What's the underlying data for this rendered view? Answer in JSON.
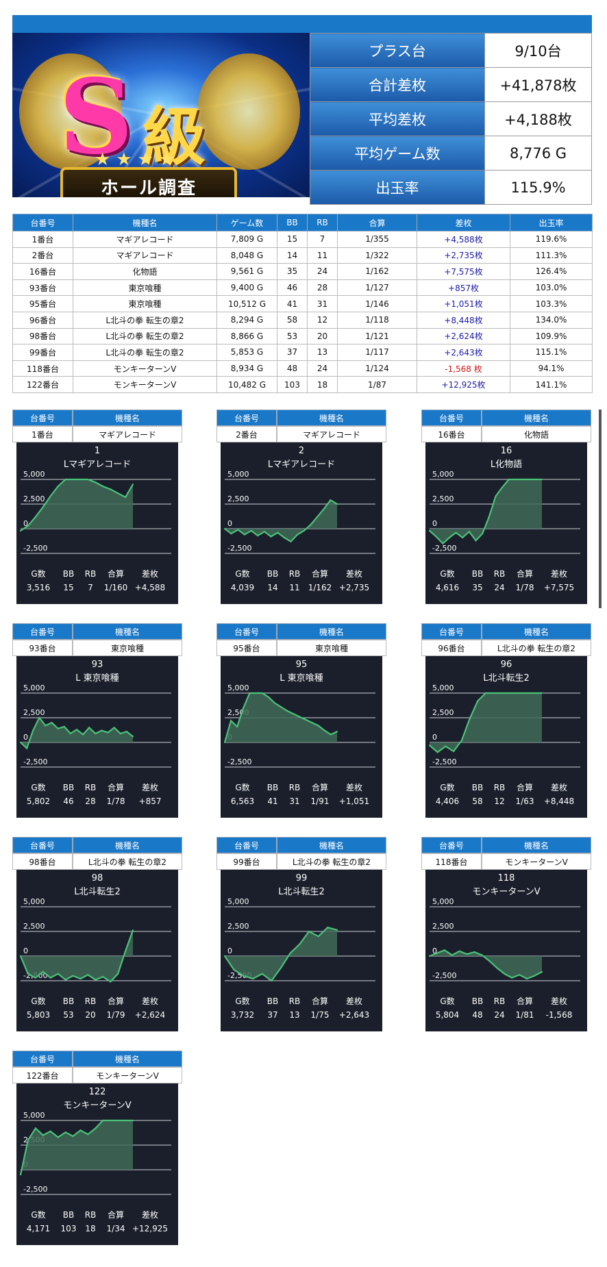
{
  "summary": [
    {
      "label": "プラス台",
      "value": "9/10台"
    },
    {
      "label": "合計差枚",
      "value": "+41,878枚"
    },
    {
      "label": "平均差枚",
      "value": "+4,188枚"
    },
    {
      "label": "平均ゲーム数",
      "value": "8,776 G"
    },
    {
      "label": "出玉率",
      "value": "115.9%"
    }
  ],
  "banner": {
    "big": "S",
    "kanji": "級",
    "ribbon": "ホール調査"
  },
  "table": {
    "headers": [
      "台番号",
      "機種名",
      "ゲーム数",
      "BB",
      "RB",
      "合算",
      "差枚",
      "出玉率"
    ],
    "rows": [
      [
        "1番台",
        "マギアレコード",
        "7,809 G",
        "15",
        "7",
        "1/355",
        "+4,588枚",
        "119.6%"
      ],
      [
        "2番台",
        "マギアレコード",
        "8,048 G",
        "14",
        "11",
        "1/322",
        "+2,735枚",
        "111.3%"
      ],
      [
        "16番台",
        "化物語",
        "9,561 G",
        "35",
        "24",
        "1/162",
        "+7,575枚",
        "126.4%"
      ],
      [
        "93番台",
        "東京喰種",
        "9,400 G",
        "46",
        "28",
        "1/127",
        "+857枚",
        "103.0%"
      ],
      [
        "95番台",
        "東京喰種",
        "10,512 G",
        "41",
        "31",
        "1/146",
        "+1,051枚",
        "103.3%"
      ],
      [
        "96番台",
        "L北斗の拳 転生の章2",
        "8,294 G",
        "58",
        "12",
        "1/118",
        "+8,448枚",
        "134.0%"
      ],
      [
        "98番台",
        "L北斗の拳 転生の章2",
        "8,866 G",
        "53",
        "20",
        "1/121",
        "+2,624枚",
        "109.9%"
      ],
      [
        "99番台",
        "L北斗の拳 転生の章2",
        "5,853 G",
        "37",
        "13",
        "1/117",
        "+2,643枚",
        "115.1%"
      ],
      [
        "118番台",
        "モンキーターンV",
        "8,934 G",
        "48",
        "24",
        "1/124",
        "-1,568 枚",
        "94.1%"
      ],
      [
        "122番台",
        "モンキーターンV",
        "10,482 G",
        "103",
        "18",
        "1/87",
        "+12,925枚",
        "141.1%"
      ]
    ]
  },
  "card_header": {
    "num": "台番号",
    "name": "機種名"
  },
  "stat_labels": [
    "G数",
    "BB",
    "RB",
    "合算",
    "差枚"
  ],
  "chart_data": [
    {
      "type": "line",
      "num": "1番台",
      "machine": "マギアレコード",
      "title": "1",
      "subtitle": "Lマギアレコード",
      "yticks": [
        "5,000",
        "2,500",
        "0",
        "-2,500"
      ],
      "ylim": [
        -2500,
        5000
      ],
      "y": [
        -200,
        300,
        1200,
        2200,
        3300,
        4300,
        5000,
        5000,
        5000,
        5000,
        4700,
        4300,
        4000,
        3600,
        3200,
        4500
      ],
      "stats": [
        "3,516",
        "15",
        "7",
        "1/160",
        "+4,588"
      ]
    },
    {
      "type": "line",
      "num": "2番台",
      "machine": "マギアレコード",
      "title": "2",
      "subtitle": "Lマギアレコード",
      "yticks": [
        "5,000",
        "2,500",
        "0",
        "-2,500"
      ],
      "ylim": [
        -2500,
        5000
      ],
      "y": [
        0,
        -500,
        -100,
        -600,
        -200,
        -700,
        -300,
        -800,
        -400,
        -900,
        -1300,
        -600,
        -200,
        400,
        1200,
        2000,
        2900,
        2500
      ],
      "stats": [
        "4,039",
        "14",
        "11",
        "1/162",
        "+2,735"
      ]
    },
    {
      "type": "line",
      "num": "16番台",
      "machine": "化物語",
      "title": "16",
      "subtitle": "L化物語",
      "yticks": [
        "5,000",
        "2,500",
        "0",
        "-2,500"
      ],
      "ylim": [
        -2500,
        5000
      ],
      "y": [
        -200,
        -800,
        -1500,
        -900,
        -400,
        -900,
        -300,
        -1200,
        -500,
        1200,
        3300,
        4200,
        5000,
        5000,
        5000,
        5000,
        5000,
        5000
      ],
      "stats": [
        "4,616",
        "35",
        "24",
        "1/78",
        "+7,575"
      ]
    },
    {
      "type": "line",
      "num": "93番台",
      "machine": "東京喰種",
      "title": "93",
      "subtitle": "L 東京喰種",
      "yticks": [
        "5,000",
        "2,500",
        "0",
        "-2,500"
      ],
      "ylim": [
        -2500,
        5000
      ],
      "y": [
        0,
        -600,
        1200,
        2500,
        1700,
        2000,
        1400,
        1600,
        900,
        1300,
        800,
        1500,
        900,
        1200,
        1000,
        1500,
        900,
        1100,
        600
      ],
      "stats": [
        "5,802",
        "46",
        "28",
        "1/78",
        "+857"
      ]
    },
    {
      "type": "line",
      "num": "95番台",
      "machine": "東京喰種",
      "title": "95",
      "subtitle": "L 東京喰種",
      "yticks": [
        "5,000",
        "2,500",
        "0",
        "-2,500"
      ],
      "ylim": [
        -2500,
        5000
      ],
      "y": [
        0,
        2200,
        1600,
        3500,
        5000,
        5000,
        5000,
        4600,
        4000,
        3600,
        3200,
        2900,
        2600,
        2300,
        2000,
        1700,
        1200,
        800,
        1100
      ],
      "stats": [
        "6,563",
        "41",
        "31",
        "1/91",
        "+1,051"
      ]
    },
    {
      "type": "line",
      "num": "96番台",
      "machine": "L北斗の拳 転生の章2",
      "title": "96",
      "subtitle": "L北斗転生2",
      "yticks": [
        "5,000",
        "2,500",
        "0",
        "-2,500"
      ],
      "ylim": [
        -2500,
        5000
      ],
      "y": [
        -300,
        -1000,
        -400,
        -900,
        200,
        2400,
        4200,
        5000,
        5000,
        5000,
        5000,
        5000,
        5000,
        5000,
        5000
      ],
      "stats": [
        "4,406",
        "58",
        "12",
        "1/63",
        "+8,448"
      ]
    },
    {
      "type": "line",
      "num": "98番台",
      "machine": "L北斗の拳 転生の章2",
      "title": "98",
      "subtitle": "L北斗転生2",
      "yticks": [
        "5,000",
        "2,500",
        "0",
        "-2,500"
      ],
      "ylim": [
        -2500,
        5000
      ],
      "y": [
        0,
        -1800,
        -2200,
        -1600,
        -2200,
        -1800,
        -2400,
        -2000,
        -2300,
        -1900,
        -2400,
        -2100,
        -2600,
        -1800,
        500,
        2624
      ],
      "stats": [
        "5,803",
        "53",
        "20",
        "1/79",
        "+2,624"
      ]
    },
    {
      "type": "line",
      "num": "99番台",
      "machine": "L北斗の拳 転生の章2",
      "title": "99",
      "subtitle": "L北斗転生2",
      "yticks": [
        "5,000",
        "2,500",
        "0",
        "-2,500"
      ],
      "ylim": [
        -2500,
        5000
      ],
      "y": [
        0,
        -1400,
        -2000,
        -2300,
        -1800,
        -2500,
        -1200,
        300,
        1200,
        2500,
        2000,
        2900,
        2643
      ],
      "stats": [
        "3,732",
        "37",
        "13",
        "1/75",
        "+2,643"
      ]
    },
    {
      "type": "line",
      "num": "118番台",
      "machine": "モンキーターンV",
      "title": "118",
      "subtitle": "モンキーターンV",
      "yticks": [
        "5,000",
        "2,500",
        "0",
        "-2,500"
      ],
      "ylim": [
        -2500,
        5000
      ],
      "y": [
        0,
        300,
        600,
        100,
        500,
        200,
        400,
        100,
        -500,
        -1200,
        -1800,
        -2200,
        -1900,
        -2300,
        -2000,
        -1600
      ],
      "stats": [
        "5,804",
        "48",
        "24",
        "1/81",
        "-1,568"
      ]
    },
    {
      "type": "line",
      "num": "122番台",
      "machine": "モンキーターンV",
      "title": "122",
      "subtitle": "モンキーターンV",
      "yticks": [
        "5,000",
        "2,500",
        "0",
        "-2,500"
      ],
      "ylim": [
        -2500,
        5000
      ],
      "y": [
        -500,
        3000,
        4200,
        3500,
        3900,
        3300,
        3800,
        3400,
        4000,
        3600,
        4200,
        5000,
        5000,
        5000,
        5000,
        5000
      ],
      "stats": [
        "4,171",
        "103",
        "18",
        "1/34",
        "+12,925"
      ]
    }
  ]
}
